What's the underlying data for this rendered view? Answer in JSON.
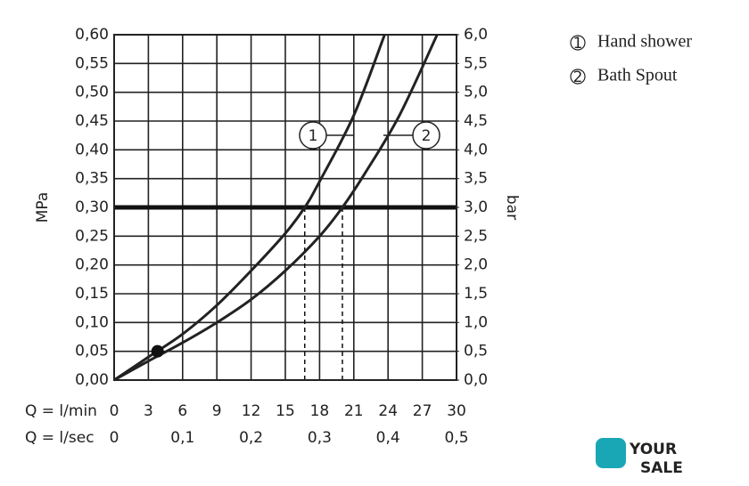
{
  "chart_data": {
    "type": "line",
    "x_label": "Q = l/min",
    "x2_label": "Q = l/sec",
    "y_label": "MPa",
    "y2_label": "bar",
    "xlim": [
      0,
      30
    ],
    "xticks": [
      0,
      3,
      6,
      9,
      12,
      15,
      18,
      21,
      24,
      27,
      30
    ],
    "x2lim": [
      0,
      0.5
    ],
    "x2ticks": [
      {
        "value": 0,
        "label": "0"
      },
      {
        "value": 0.1,
        "label": "0,1"
      },
      {
        "value": 0.2,
        "label": "0,2"
      },
      {
        "value": 0.3,
        "label": "0,3"
      },
      {
        "value": 0.4,
        "label": "0,4"
      },
      {
        "value": 0.5,
        "label": "0,5"
      }
    ],
    "ylim": [
      0,
      0.6
    ],
    "yticks": [
      {
        "value": 0,
        "label": "0,00"
      },
      {
        "value": 0.05,
        "label": "0,05"
      },
      {
        "value": 0.1,
        "label": "0,10"
      },
      {
        "value": 0.15,
        "label": "0,15"
      },
      {
        "value": 0.2,
        "label": "0,20"
      },
      {
        "value": 0.25,
        "label": "0,25"
      },
      {
        "value": 0.3,
        "label": "0,30"
      },
      {
        "value": 0.35,
        "label": "0,35"
      },
      {
        "value": 0.4,
        "label": "0,40"
      },
      {
        "value": 0.45,
        "label": "0,45"
      },
      {
        "value": 0.5,
        "label": "0,50"
      },
      {
        "value": 0.55,
        "label": "0,55"
      },
      {
        "value": 0.6,
        "label": "0,60"
      }
    ],
    "y2lim": [
      0,
      6
    ],
    "y2ticks": [
      {
        "value": 0,
        "label": "0,0"
      },
      {
        "value": 0.5,
        "label": "0,5"
      },
      {
        "value": 1,
        "label": "1,0"
      },
      {
        "value": 1.5,
        "label": "1,5"
      },
      {
        "value": 2,
        "label": "2,0"
      },
      {
        "value": 2.5,
        "label": "2,5"
      },
      {
        "value": 3,
        "label": "3,0"
      },
      {
        "value": 3.5,
        "label": "3,5"
      },
      {
        "value": 4,
        "label": "4,0"
      },
      {
        "value": 4.5,
        "label": "4,5"
      },
      {
        "value": 5,
        "label": "5,0"
      },
      {
        "value": 5.5,
        "label": "5,5"
      },
      {
        "value": 6,
        "label": "6,0"
      }
    ],
    "grid": true,
    "threshold": 0.3,
    "crossings": [
      16.7,
      20
    ],
    "point": {
      "x": 3.8,
      "y": 0.05
    },
    "series": [
      {
        "name": "Hand shower",
        "label": "1",
        "color": "#222",
        "x": [
          0,
          3,
          6,
          9,
          12,
          15,
          16.7,
          18,
          21,
          23.7
        ],
        "values": [
          0,
          0.04,
          0.08,
          0.13,
          0.19,
          0.255,
          0.3,
          0.345,
          0.46,
          0.6
        ]
      },
      {
        "name": "Bath Spout",
        "label": "2",
        "color": "#222",
        "x": [
          0,
          3,
          6,
          9,
          12,
          15,
          18,
          20,
          22,
          25,
          28.3
        ],
        "values": [
          0,
          0.033,
          0.065,
          0.1,
          0.14,
          0.19,
          0.25,
          0.3,
          0.36,
          0.46,
          0.6
        ]
      }
    ],
    "watermark": [
      "YOUR",
      "SALE"
    ]
  }
}
